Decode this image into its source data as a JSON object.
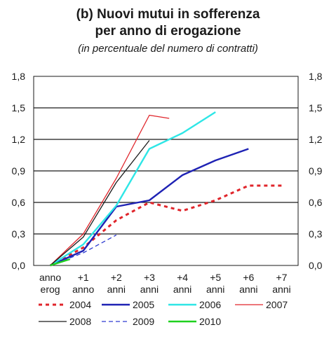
{
  "chart_data": {
    "type": "line",
    "title_line1": "(b) Nuovi mutui in sofferenza",
    "title_line2": "per anno di erogazione",
    "subtitle": "(in percentuale del numero di contratti)",
    "categories": [
      [
        "anno",
        "erog"
      ],
      [
        "+1",
        "anno"
      ],
      [
        "+2",
        "anni"
      ],
      [
        "+3",
        "anni"
      ],
      [
        "+4",
        "anni"
      ],
      [
        "+5",
        "anni"
      ],
      [
        "+6",
        "anni"
      ],
      [
        "+7",
        "anni"
      ]
    ],
    "yticks": [
      "0,0",
      "0,3",
      "0,6",
      "0,9",
      "1,2",
      "1,5",
      "1,8"
    ],
    "ylim": [
      0,
      1.8
    ],
    "xlim": [
      0,
      7
    ],
    "grid": true,
    "legend_position": "bottom",
    "series": [
      {
        "name": "2004",
        "color": "#e0252b",
        "dash": "dotted-thick",
        "x": [
          0,
          1,
          2,
          3,
          4,
          5,
          6,
          7
        ],
        "values": [
          0.0,
          0.17,
          0.43,
          0.6,
          0.52,
          0.62,
          0.76,
          0.76
        ]
      },
      {
        "name": "2005",
        "color": "#1e22b4",
        "dash": "solid-thick",
        "x": [
          0,
          1,
          2,
          3,
          4,
          5,
          6
        ],
        "values": [
          0.0,
          0.14,
          0.56,
          0.62,
          0.86,
          1.0,
          1.11
        ]
      },
      {
        "name": "2006",
        "color": "#2ee6e6",
        "dash": "solid-thick",
        "x": [
          0,
          1,
          2,
          3,
          4,
          5
        ],
        "values": [
          0.0,
          0.2,
          0.57,
          1.11,
          1.26,
          1.46
        ]
      },
      {
        "name": "2007",
        "color": "#e0252b",
        "dash": "solid-thin",
        "x": [
          0,
          1,
          2,
          3,
          3.6
        ],
        "values": [
          0.0,
          0.3,
          0.83,
          1.43,
          1.4
        ]
      },
      {
        "name": "2008",
        "color": "#1a1a1a",
        "dash": "solid-thin",
        "x": [
          0,
          1,
          2,
          3
        ],
        "values": [
          0.0,
          0.27,
          0.79,
          1.19
        ]
      },
      {
        "name": "2009",
        "color": "#2d3bd0",
        "dash": "dashed",
        "x": [
          0,
          1,
          2
        ],
        "values": [
          0.0,
          0.12,
          0.29
        ]
      },
      {
        "name": "2010",
        "color": "#1fd11f",
        "dash": "solid-thick",
        "x": [
          0,
          0.6
        ],
        "values": [
          0.0,
          0.06
        ]
      }
    ]
  }
}
